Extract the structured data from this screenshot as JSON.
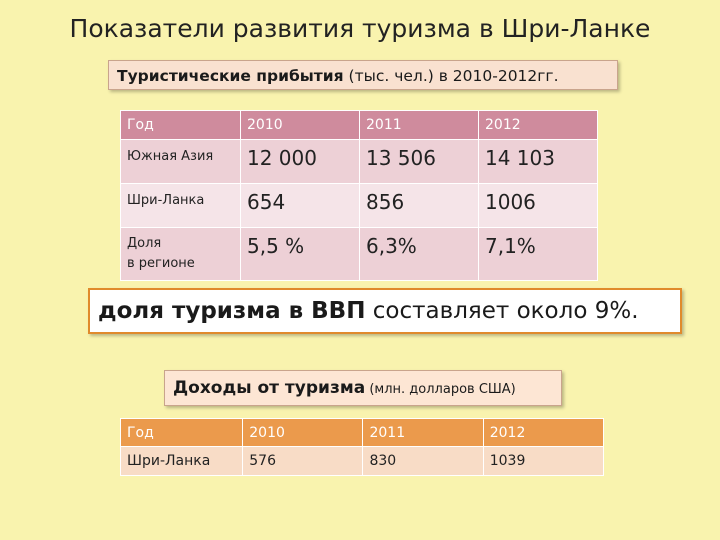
{
  "slide": {
    "title": "Показатели развития туризма в Шри-Ланке"
  },
  "arrivals": {
    "heading_bold": "Туристические прибытия",
    "heading_rest": " (тыс. чел.) в 2010-2012гг.",
    "header": [
      "Год",
      "2010",
      "2011",
      "2012"
    ],
    "rows": [
      {
        "label": "Южная Азия",
        "values": [
          "12 000",
          "13 506",
          "14 103"
        ]
      },
      {
        "label": "Шри-Ланка",
        "values": [
          "654",
          "856",
          "1006"
        ]
      },
      {
        "label_line1": "Доля",
        "label_line2": "в регионе",
        "values": [
          "5,5 %",
          "6,3%",
          "7,1%"
        ]
      }
    ]
  },
  "gdp": {
    "bold": "доля туризма в ВВП",
    "rest": " составляет около 9%."
  },
  "income": {
    "heading_bold": "Доходы от туризма",
    "heading_small": " (млн. долларов США)",
    "header": [
      "Год",
      "2010",
      "2011",
      "2012"
    ],
    "row": {
      "label": "Шри-Ланка",
      "values": [
        "576",
        "830",
        "1039"
      ]
    }
  },
  "colors": {
    "background": "#f9f3ae",
    "table1_header": "#cf8b9d",
    "table2_header": "#eb9a4c",
    "gdp_border": "#e08a2c"
  }
}
